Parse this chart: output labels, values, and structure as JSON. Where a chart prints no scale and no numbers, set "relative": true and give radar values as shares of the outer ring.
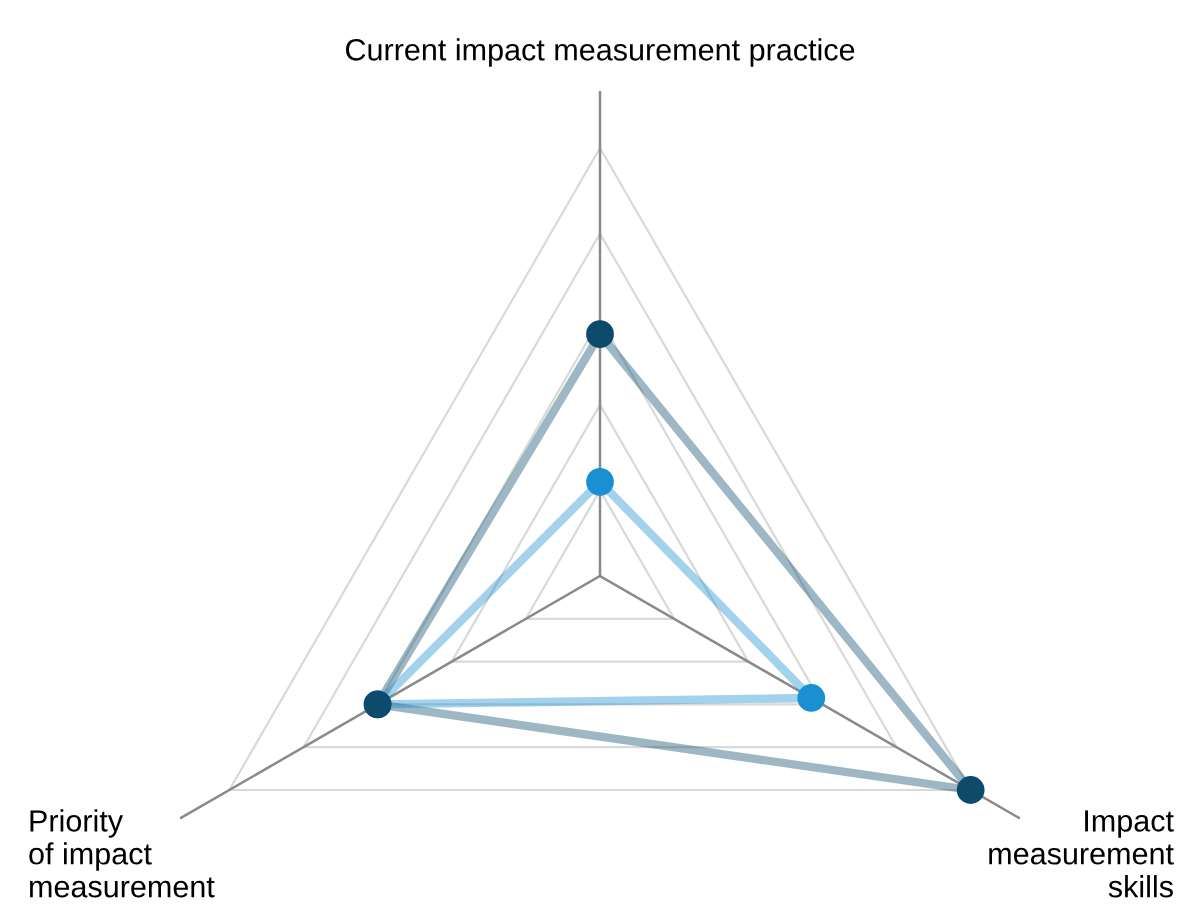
{
  "chart_data": {
    "type": "radar",
    "relative": true,
    "legend": false,
    "marker": "circle",
    "grid": true,
    "categories": [
      "Current impact measurement practice",
      "Impact\nmeasurement\nskills",
      "Priority\nof impact\nmeasurement"
    ],
    "series": [
      {
        "color": "#0d4a6b",
        "values": [
          0.565,
          1.0,
          0.6
        ]
      },
      {
        "color": "#1a8fd1",
        "values": [
          0.22,
          0.57,
          0.6
        ]
      }
    ]
  }
}
